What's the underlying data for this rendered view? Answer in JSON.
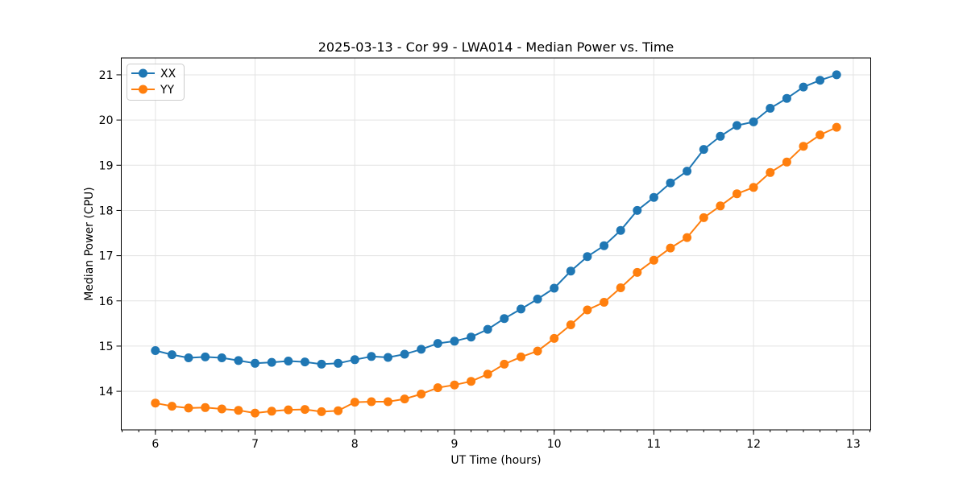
{
  "figure": {
    "background": "#ffffff"
  },
  "chart_data": {
    "type": "line",
    "title": "2025-03-13 - Cor 99 - LWA014 - Median Power vs. Time",
    "xlabel": "UT Time (hours)",
    "ylabel": "Median Power (CPU)",
    "xlim": [
      5.658,
      13.175
    ],
    "ylim": [
      13.147,
      21.373
    ],
    "xticks": [
      6,
      7,
      8,
      9,
      10,
      11,
      12,
      13
    ],
    "yticks": [
      14,
      15,
      16,
      17,
      18,
      19,
      20,
      21
    ],
    "x_minor_interval": 0.166667,
    "grid": true,
    "grid_color": "#e3e3e3",
    "spine_color": "#000000",
    "legend_position": "upper-left",
    "x": [
      6.0,
      6.1667,
      6.3333,
      6.5,
      6.6667,
      6.8333,
      7.0,
      7.1667,
      7.3333,
      7.5,
      7.6667,
      7.8333,
      8.0,
      8.1667,
      8.3333,
      8.5,
      8.6667,
      8.8333,
      9.0,
      9.1667,
      9.3333,
      9.5,
      9.6667,
      9.8333,
      10.0,
      10.1667,
      10.3333,
      10.5,
      10.6667,
      10.8333,
      11.0,
      11.1667,
      11.3333,
      11.5,
      11.6667,
      11.8333,
      12.0,
      12.1667,
      12.3333,
      12.5,
      12.6667,
      12.8333
    ],
    "series": [
      {
        "name": "XX",
        "color": "#1f77b4",
        "values": [
          14.9,
          14.81,
          14.74,
          14.76,
          14.74,
          14.68,
          14.62,
          14.64,
          14.67,
          14.65,
          14.6,
          14.62,
          14.7,
          14.77,
          14.75,
          14.82,
          14.93,
          15.06,
          15.11,
          15.2,
          15.37,
          15.61,
          15.82,
          16.04,
          16.28,
          16.66,
          16.98,
          17.22,
          17.56,
          18.0,
          18.29,
          18.61,
          18.87,
          19.35,
          19.64,
          19.88,
          19.96,
          20.26,
          20.48,
          20.73,
          20.88,
          21.0
        ]
      },
      {
        "name": "YY",
        "color": "#ff7f0e",
        "values": [
          13.74,
          13.67,
          13.63,
          13.64,
          13.61,
          13.58,
          13.52,
          13.56,
          13.59,
          13.6,
          13.55,
          13.57,
          13.76,
          13.77,
          13.77,
          13.83,
          13.94,
          14.08,
          14.14,
          14.22,
          14.38,
          14.6,
          14.76,
          14.89,
          15.17,
          15.47,
          15.8,
          15.97,
          16.29,
          16.63,
          16.9,
          17.17,
          17.4,
          17.84,
          18.1,
          18.37,
          18.51,
          18.84,
          19.07,
          19.42,
          19.67,
          19.84
        ]
      }
    ]
  }
}
